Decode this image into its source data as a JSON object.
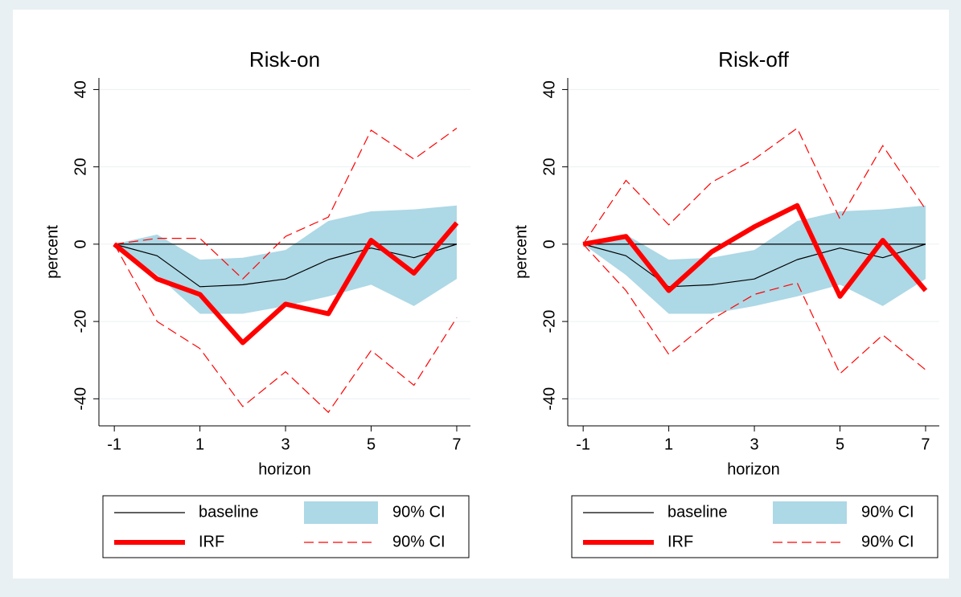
{
  "chart_data": [
    {
      "type": "line",
      "title": "Risk-on",
      "xlabel": "horizon",
      "ylabel": "percent",
      "x": [
        -1,
        0,
        1,
        2,
        3,
        4,
        5,
        6,
        7
      ],
      "xlim": [
        -1.36,
        7.32
      ],
      "xticks": [
        -1,
        1,
        3,
        5,
        7
      ],
      "ylim": [
        -47,
        43
      ],
      "yticks": [
        -40,
        -20,
        0,
        20,
        40
      ],
      "grid": true,
      "series": [
        {
          "name": "baseline",
          "kind": "line",
          "color": "#000000",
          "values": [
            0,
            -3,
            -11,
            -10.5,
            -9,
            -4,
            -1,
            -3.5,
            0
          ]
        },
        {
          "name": "90% CI",
          "kind": "band",
          "color": "#add8e6",
          "upper": [
            0,
            2.5,
            -4,
            -3.5,
            -1.5,
            6,
            8.5,
            9,
            10
          ],
          "lower": [
            0,
            -8,
            -18,
            -18,
            -16,
            -13.5,
            -10.5,
            -16,
            -9
          ]
        },
        {
          "name": "IRF",
          "kind": "line",
          "color": "#ff0000",
          "values": [
            0,
            -9,
            -13,
            -25.5,
            -15.5,
            -18,
            1,
            -7.5,
            5.5
          ]
        },
        {
          "name": "90% CI",
          "kind": "dashed-band",
          "color": "#ff0000",
          "upper": [
            0,
            1.5,
            1.5,
            -9,
            2,
            7,
            29.5,
            22,
            30
          ],
          "lower": [
            0,
            -20,
            -27,
            -42,
            -33,
            -43.5,
            -27.5,
            -36.5,
            -19
          ]
        }
      ]
    },
    {
      "type": "line",
      "title": "Risk-off",
      "xlabel": "horizon",
      "ylabel": "percent",
      "x": [
        -1,
        0,
        1,
        2,
        3,
        4,
        5,
        6,
        7
      ],
      "xlim": [
        -1.36,
        7.32
      ],
      "xticks": [
        -1,
        1,
        3,
        5,
        7
      ],
      "ylim": [
        -47,
        43
      ],
      "yticks": [
        -40,
        -20,
        0,
        20,
        40
      ],
      "grid": true,
      "series": [
        {
          "name": "baseline",
          "kind": "line",
          "color": "#000000",
          "values": [
            0,
            -3,
            -11,
            -10.5,
            -9,
            -4,
            -1,
            -3.5,
            0
          ]
        },
        {
          "name": "90% CI",
          "kind": "band",
          "color": "#add8e6",
          "upper": [
            0,
            2.5,
            -4,
            -3.5,
            -1.5,
            6,
            8.5,
            9,
            10
          ],
          "lower": [
            0,
            -8,
            -18,
            -18,
            -16,
            -13.5,
            -10.5,
            -16,
            -9
          ]
        },
        {
          "name": "IRF",
          "kind": "line",
          "color": "#ff0000",
          "values": [
            0,
            2,
            -12,
            -2,
            4.5,
            10,
            -13.5,
            1,
            -12
          ]
        },
        {
          "name": "90% CI",
          "kind": "dashed-band",
          "color": "#ff0000",
          "upper": [
            0,
            16.5,
            5,
            16,
            22,
            30,
            6.5,
            25.5,
            9
          ],
          "lower": [
            0,
            -12,
            -28.5,
            -19.5,
            -13,
            -10,
            -33.5,
            -23.5,
            -32.5
          ]
        }
      ]
    }
  ]
}
